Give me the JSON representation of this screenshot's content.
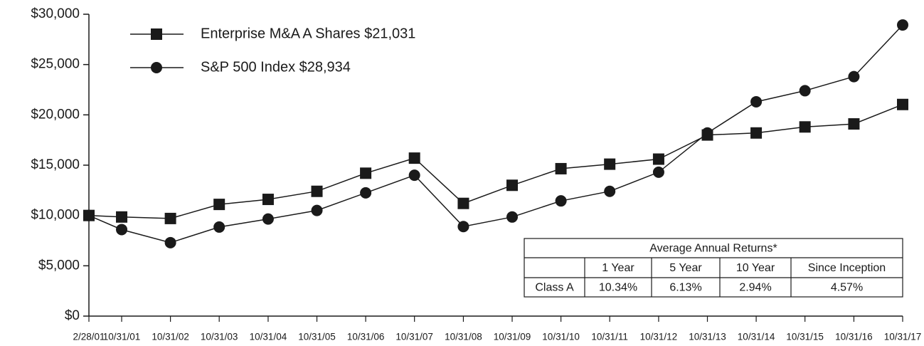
{
  "chart_data": {
    "type": "line",
    "categories": [
      "2/28/01",
      "10/31/01",
      "10/31/02",
      "10/31/03",
      "10/31/04",
      "10/31/05",
      "10/31/06",
      "10/31/07",
      "10/31/08",
      "10/31/09",
      "10/31/10",
      "10/31/11",
      "10/31/12",
      "10/31/13",
      "10/31/14",
      "10/31/15",
      "10/31/16",
      "10/31/17"
    ],
    "series": [
      {
        "name": "Enterprise M&A A Shares $21,031",
        "color": "#1a1a1a",
        "marker": "square",
        "values": [
          10000,
          9850,
          9700,
          11100,
          11600,
          12400,
          14200,
          15700,
          11200,
          13000,
          14650,
          15100,
          15600,
          18000,
          18200,
          18800,
          19100,
          21031
        ]
      },
      {
        "name": "S&P 500 Index $28,934",
        "color": "#1a1a1a",
        "marker": "circle",
        "values": [
          10000,
          8600,
          7300,
          8850,
          9650,
          10500,
          12250,
          14000,
          8900,
          9850,
          11450,
          12400,
          14300,
          18200,
          21300,
          22400,
          23800,
          28934
        ]
      }
    ],
    "ylim": [
      0,
      30000
    ],
    "yticks": [
      {
        "value": 0,
        "label": "$0"
      },
      {
        "value": 5000,
        "label": "$5,000"
      },
      {
        "value": 10000,
        "label": "$10,000"
      },
      {
        "value": 15000,
        "label": "$15,000"
      },
      {
        "value": 20000,
        "label": "$20,000"
      },
      {
        "value": 25000,
        "label": "$25,000"
      },
      {
        "value": 30000,
        "label": "$30,000"
      }
    ],
    "grid": false,
    "legend": "top-left"
  },
  "table": {
    "title": "Average Annual Returns*",
    "header": [
      "1 Year",
      "5 Year",
      "10 Year",
      "Since Inception"
    ],
    "rows": [
      [
        "Class A",
        "10.34%",
        "6.13%",
        "2.94%",
        "4.57%"
      ]
    ]
  }
}
